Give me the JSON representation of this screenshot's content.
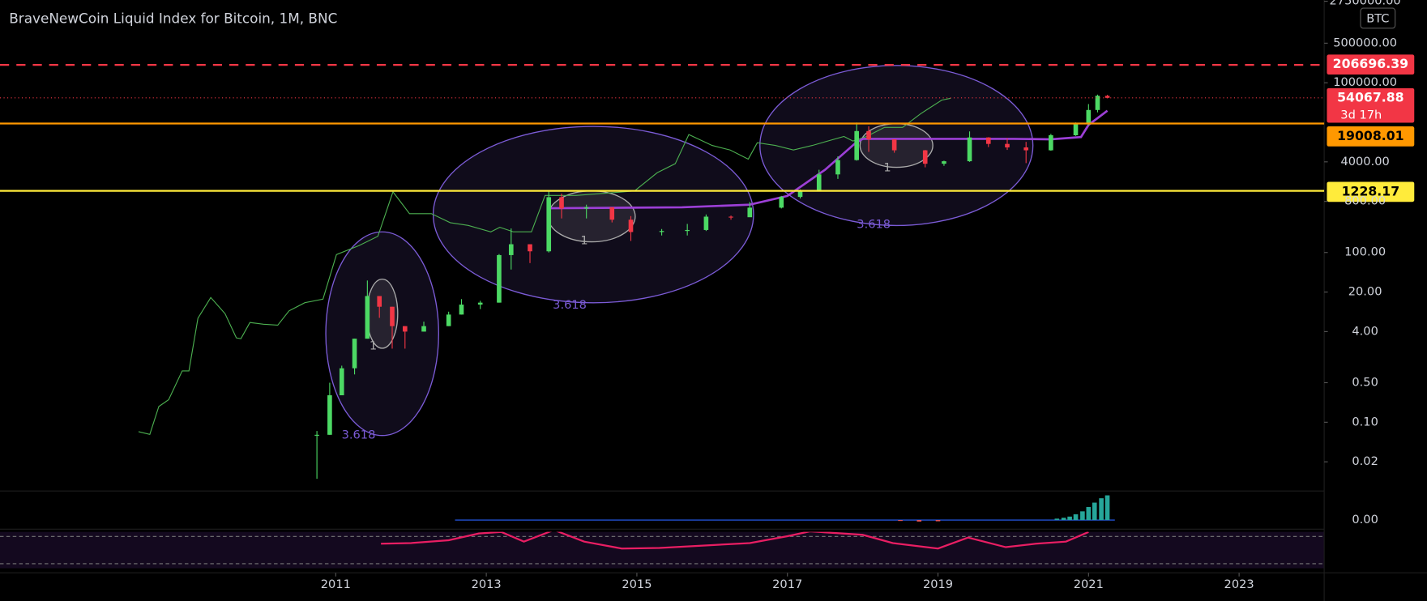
{
  "chart_data": {
    "type": "candlestick",
    "title": "BraveNewCoin Liquid Index for Bitcoin, 1M, BNC",
    "currency": "BTC",
    "log_scale": true,
    "xlim": [
      2006.54,
      2024.13
    ],
    "xticks": [
      2011,
      2013,
      2015,
      2017,
      2019,
      2021,
      2023
    ],
    "ylim": [
      0.0061,
      2900000
    ],
    "yticks": [
      {
        "value": 2750000,
        "label": "2750000.00"
      },
      {
        "value": 500000,
        "label": "500000.00"
      },
      {
        "value": 100000,
        "label": "100000.00"
      },
      {
        "value": 4000,
        "label": "4000.00"
      },
      {
        "value": 800,
        "label": "800.00"
      },
      {
        "value": 100,
        "label": "100.00"
      },
      {
        "value": 20,
        "label": "20.00"
      },
      {
        "value": 4,
        "label": "4.00"
      },
      {
        "value": 0.5,
        "label": "0.50"
      },
      {
        "value": 0.1,
        "label": "0.10"
      },
      {
        "value": 0.02,
        "label": "0.02"
      }
    ],
    "up_color": "#4cd964",
    "down_color": "#f23645",
    "candles": {
      "x": [
        2010.75,
        2010.92,
        2011.08,
        2011.25,
        2011.42,
        2011.58,
        2011.75,
        2011.92,
        2012.17,
        2012.5,
        2012.67,
        2012.92,
        2013.17,
        2013.33,
        2013.58,
        2013.83,
        2014.0,
        2014.33,
        2014.67,
        2014.92,
        2015.33,
        2015.67,
        2015.92,
        2016.25,
        2016.5,
        2016.92,
        2017.17,
        2017.42,
        2017.67,
        2017.92,
        2018.08,
        2018.42,
        2018.83,
        2019.08,
        2019.42,
        2019.67,
        2019.92,
        2020.17,
        2020.5,
        2020.83,
        2021.0,
        2021.12,
        2021.25
      ],
      "open": [
        0.06,
        0.06,
        0.3,
        0.9,
        3,
        17,
        11,
        5,
        4,
        5,
        8,
        12,
        13,
        90,
        140,
        105,
        950,
        600,
        630,
        380,
        230,
        240,
        250,
        430,
        420,
        620,
        960,
        1200,
        2400,
        4300,
        14000,
        10000,
        6400,
        3700,
        4100,
        10800,
        8300,
        7200,
        6400,
        11800,
        19000,
        33000,
        58800
      ],
      "high": [
        0.07,
        0.5,
        1,
        3,
        32,
        17,
        11,
        5,
        6,
        9,
        15,
        14,
        94,
        266,
        140,
        1200,
        1100,
        700,
        630,
        440,
        260,
        320,
        470,
        450,
        780,
        1000,
        1300,
        2900,
        5000,
        19800,
        17000,
        10000,
        6500,
        4200,
        13800,
        10900,
        10500,
        9000,
        12500,
        19900,
        42000,
        61700,
        61000
      ],
      "low": [
        0.01,
        0.06,
        0.3,
        0.7,
        3,
        7,
        2,
        2,
        4,
        5,
        8,
        10,
        13,
        50,
        65,
        100,
        400,
        400,
        340,
        160,
        200,
        200,
        240,
        380,
        550,
        600,
        900,
        1200,
        2000,
        4200,
        6000,
        5800,
        3200,
        3400,
        4000,
        7300,
        6500,
        3800,
        6300,
        11500,
        17500,
        30000,
        53000
      ],
      "close": [
        0.06,
        0.3,
        0.9,
        3,
        17,
        11,
        5,
        4,
        5,
        8,
        12,
        13,
        90,
        140,
        105,
        950,
        600,
        630,
        380,
        230,
        240,
        250,
        430,
        420,
        620,
        960,
        1200,
        2400,
        4300,
        14000,
        10000,
        6400,
        3700,
        4100,
        10800,
        8300,
        7200,
        6400,
        11800,
        19000,
        33000,
        58800,
        54067.88
      ]
    },
    "lines": [
      {
        "color": "#4caf50",
        "x": [
          2008.38,
          2008.53,
          2008.65,
          2008.78,
          2008.96,
          2009.05,
          2009.17,
          2009.34,
          2009.53,
          2009.68,
          2009.74,
          2009.86,
          2010.04,
          2010.23,
          2010.38,
          2010.59,
          2010.83,
          2011.01,
          2011.31,
          2011.56,
          2011.76,
          2011.98,
          2012.27,
          2012.52,
          2012.76,
          2013.06,
          2013.18,
          2013.36,
          2013.6,
          2013.78,
          2014.19,
          2014.67,
          2014.97,
          2015.27,
          2015.51,
          2015.69,
          2016.0,
          2016.24,
          2016.48,
          2016.6,
          2016.84,
          2017.08,
          2017.33,
          2017.75,
          2017.87,
          2018.05,
          2018.29,
          2018.53,
          2018.77,
          2019.05,
          2019.17
        ],
        "values": [
          0.068,
          0.061,
          0.19,
          0.25,
          0.81,
          0.81,
          6.9,
          16,
          8.3,
          3.1,
          3.0,
          5.8,
          5.4,
          5.2,
          9.3,
          13,
          15,
          92,
          133,
          193,
          1180,
          486,
          486,
          337,
          301,
          232,
          279,
          232,
          232,
          1019,
          1019,
          1138,
          1225,
          2565,
          3715,
          12130,
          7780,
          6470,
          4470,
          8690,
          7780,
          6470,
          7780,
          11250,
          9350,
          11250,
          16290,
          16290,
          28380,
          49320,
          53200
        ]
      },
      {
        "color": "#9c3fd6",
        "x": [
          2013.85,
          2015.6,
          2016.5,
          2017.0,
          2017.5,
          2017.9,
          2018.0,
          2020.0,
          2020.5,
          2020.9,
          2021.0,
          2021.25
        ],
        "values": [
          607,
          630,
          700,
          1000,
          2900,
          8500,
          10200,
          10200,
          10000,
          11000,
          18000,
          32000
        ]
      }
    ],
    "price_lines": [
      {
        "value": 206696.39,
        "color": "#f23645",
        "style": "dashed"
      },
      {
        "value": 54067.88,
        "color": "#f23645",
        "style": "dotted",
        "countdown": "3d 17h"
      },
      {
        "value": 19008.01,
        "color": "#ff9800",
        "style": "solid"
      },
      {
        "value": 1228.17,
        "color": "#ffeb3b",
        "style": "solid"
      }
    ],
    "annotations": [
      "3.618",
      "3.618",
      "3.618",
      "1",
      "1",
      "1"
    ],
    "macd": {
      "ylim": [
        -2500,
        10000
      ],
      "yticks": [
        {
          "value": 0,
          "label": "0.00"
        }
      ],
      "x": [
        2018.5,
        2018.75,
        2019.0,
        2020.58,
        2020.67,
        2020.75,
        2020.83,
        2020.92,
        2021.0,
        2021.08,
        2021.17,
        2021.25
      ],
      "values": [
        -300,
        -500,
        -400,
        500,
        800,
        1200,
        2000,
        3000,
        4500,
        6000,
        7500,
        8500
      ],
      "up_color": "#26a69a",
      "down_color": "#ef5350"
    },
    "rsi": {
      "ylim": [
        22,
        92
      ],
      "color": "#e91e63",
      "x": [
        2011.6,
        2012.0,
        2012.5,
        2012.9,
        2013.2,
        2013.5,
        2013.9,
        2014.3,
        2014.8,
        2015.3,
        2016.0,
        2016.5,
        2017.0,
        2017.3,
        2018.0,
        2018.4,
        2019.0,
        2019.4,
        2019.9,
        2020.3,
        2020.7,
        2021.0
      ],
      "values": [
        55,
        56,
        60,
        70,
        72,
        58,
        75,
        58,
        48,
        49,
        53,
        56,
        66,
        73,
        68,
        56,
        48,
        64,
        50,
        55,
        58,
        72
      ]
    }
  }
}
